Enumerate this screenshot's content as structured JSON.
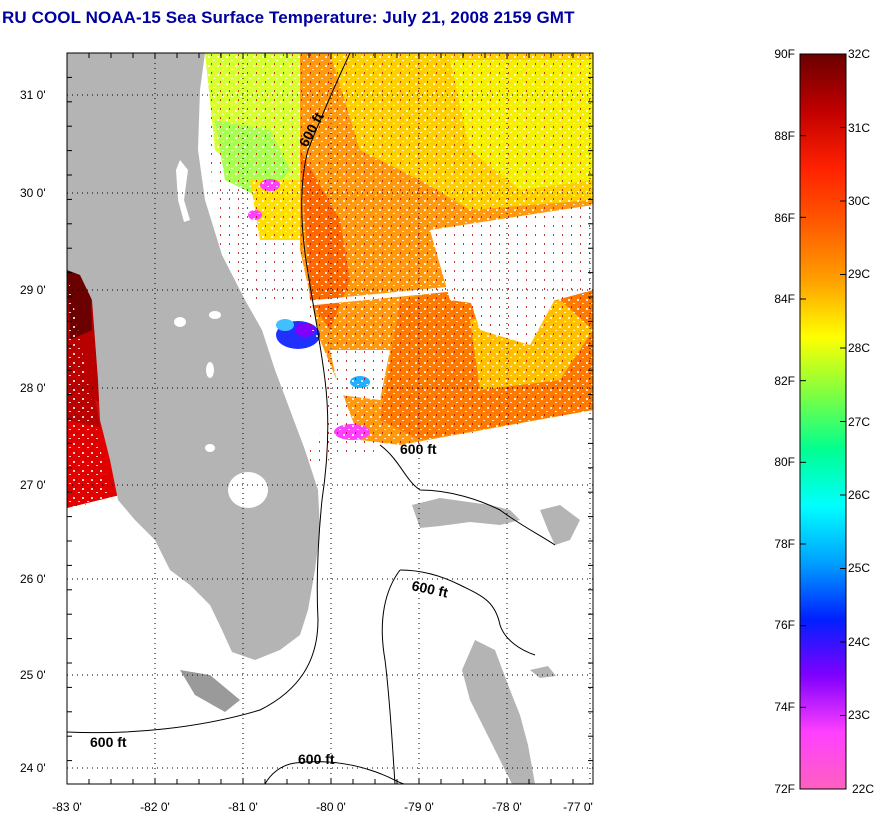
{
  "title": "RU COOL  NOAA-15  Sea Surface Temperature:  July 21, 2008 2159 GMT",
  "map": {
    "lat_labels": [
      "31 0'",
      "30 0'",
      "29 0'",
      "28 0'",
      "27 0'",
      "26 0'",
      "25 0'",
      "24 0'"
    ],
    "lon_labels": [
      "-83 0'",
      "-82 0'",
      "-81 0'",
      "-80 0'",
      "-79 0'",
      "-78 0'",
      "-77 0'"
    ],
    "contour_label": "600 ft"
  },
  "colorbar": {
    "fahrenheit_labels": [
      "90F",
      "88F",
      "86F",
      "84F",
      "82F",
      "80F",
      "78F",
      "76F",
      "74F",
      "72F"
    ],
    "celsius_labels": [
      "32C",
      "31C",
      "30C",
      "29C",
      "28C",
      "27C",
      "26C",
      "25C",
      "24C",
      "23C",
      "22C"
    ],
    "colors": [
      "#6a0000",
      "#c00000",
      "#ff2000",
      "#ff5a00",
      "#ffa000",
      "#ffff00",
      "#80ff40",
      "#00ff90",
      "#00ffff",
      "#00a0ff",
      "#0020ff",
      "#8000ff",
      "#ff40ff",
      "#ff60c0"
    ]
  },
  "colors": {
    "title": "#0000a0",
    "land": "#b4b4b4",
    "frame": "#000000"
  }
}
